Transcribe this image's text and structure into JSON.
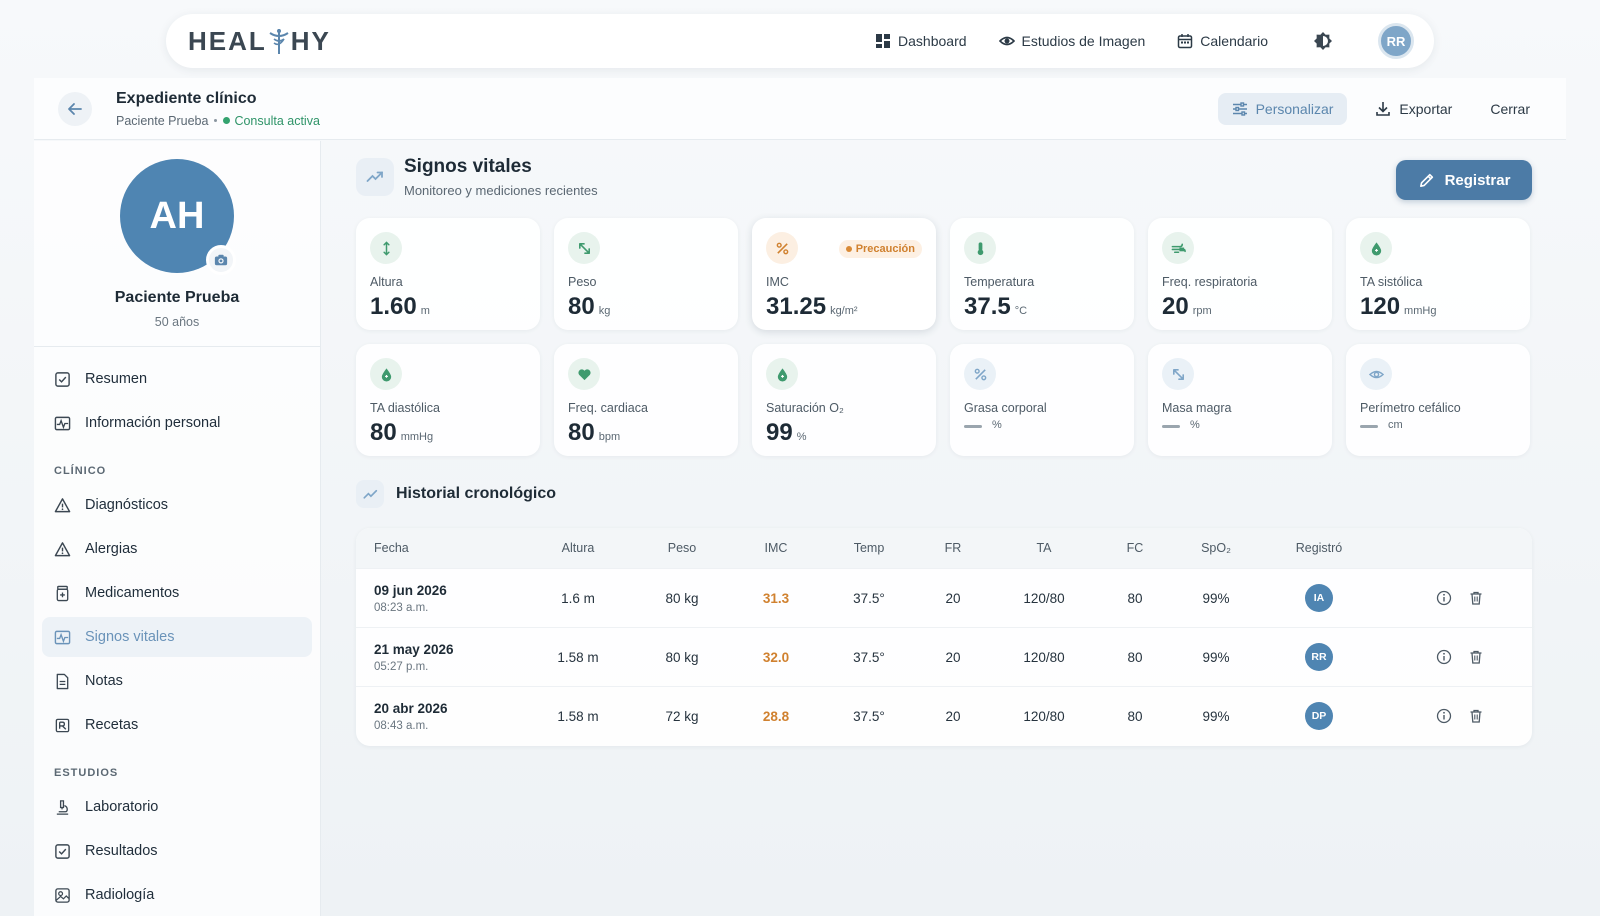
{
  "brand": {
    "left": "HEAL",
    "right": "HY"
  },
  "nav": {
    "items": [
      {
        "label": "Dashboard",
        "icon": "grid-icon"
      },
      {
        "label": "Estudios de Imagen",
        "icon": "eye-icon"
      },
      {
        "label": "Calendario",
        "icon": "calendar-icon"
      }
    ],
    "user_initials": "RR"
  },
  "header": {
    "title": "Expediente clínico",
    "patient": "Paciente Prueba",
    "status": "Consulta activa",
    "actions": {
      "customize": "Personalizar",
      "export": "Exportar",
      "close": "Cerrar"
    }
  },
  "profile": {
    "initials": "AH",
    "name": "Paciente Prueba",
    "age": "50 años"
  },
  "sidebar": {
    "top_items": [
      {
        "label": "Resumen",
        "icon": "checklist-icon"
      },
      {
        "label": "Información personal",
        "icon": "vitals-icon"
      }
    ],
    "clinical_title": "CLÍNICO",
    "clinical_items": [
      {
        "label": "Diagnósticos",
        "icon": "warning-icon"
      },
      {
        "label": "Alergias",
        "icon": "warning-icon"
      },
      {
        "label": "Medicamentos",
        "icon": "pill-bottle-icon"
      },
      {
        "label": "Signos vitales",
        "icon": "vitals-icon"
      },
      {
        "label": "Notas",
        "icon": "document-icon"
      },
      {
        "label": "Recetas",
        "icon": "prescription-icon"
      }
    ],
    "studies_title": "ESTUDIOS",
    "studies_items": [
      {
        "label": "Laboratorio",
        "icon": "microscope-icon"
      },
      {
        "label": "Resultados",
        "icon": "checklist-icon"
      },
      {
        "label": "Radiología",
        "icon": "image-scan-icon"
      }
    ]
  },
  "vitals": {
    "title": "Signos vitales",
    "subtitle": "Monitoreo y mediciones recientes",
    "register_label": "Registrar",
    "cards": [
      {
        "label": "Altura",
        "value": "1.60",
        "unit": "m",
        "icon": "height-icon"
      },
      {
        "label": "Peso",
        "value": "80",
        "unit": "kg",
        "icon": "weight-icon"
      },
      {
        "label": "IMC",
        "value": "31.25",
        "unit": "kg/m²",
        "icon": "percent-icon",
        "badge": "Precaución"
      },
      {
        "label": "Temperatura",
        "value": "37.5",
        "unit": "°C",
        "icon": "thermometer-icon"
      },
      {
        "label": "Freq. respiratoria",
        "value": "20",
        "unit": "rpm",
        "icon": "wind-icon"
      },
      {
        "label": "TA sistólica",
        "value": "120",
        "unit": "mmHg",
        "icon": "drop-icon"
      },
      {
        "label": "TA diastólica",
        "value": "80",
        "unit": "mmHg",
        "icon": "drop-icon"
      },
      {
        "label": "Freq. cardiaca",
        "value": "80",
        "unit": "bpm",
        "icon": "heart-icon"
      },
      {
        "label": "Saturación O₂",
        "value": "99",
        "unit": "%",
        "icon": "drop-icon"
      },
      {
        "label": "Grasa corporal",
        "value": "",
        "unit": "%",
        "icon": "percent-icon"
      },
      {
        "label": "Masa magra",
        "value": "",
        "unit": "%",
        "icon": "weight-icon"
      },
      {
        "label": "Perímetro cefálico",
        "value": "",
        "unit": "cm",
        "icon": "eye-icon"
      }
    ],
    "colors": {
      "green": "#3f9a6e",
      "orange": "#d0812f",
      "blue": "#7fa6c8"
    }
  },
  "history": {
    "title": "Historial cronológico",
    "columns": [
      "Fecha",
      "Altura",
      "Peso",
      "IMC",
      "Temp",
      "FR",
      "TA",
      "FC",
      "SpO₂",
      "Registró"
    ],
    "rows": [
      {
        "date": "09 jun 2026",
        "time": "08:23 a.m.",
        "height": "1.6 m",
        "weight": "80 kg",
        "imc": "31.3",
        "temp": "37.5°",
        "fr": "20",
        "ta": "120/80",
        "fc": "80",
        "spo2": "99%",
        "by": "IA"
      },
      {
        "date": "21 may 2026",
        "time": "05:27 p.m.",
        "height": "1.58 m",
        "weight": "80 kg",
        "imc": "32.0",
        "temp": "37.5°",
        "fr": "20",
        "ta": "120/80",
        "fc": "80",
        "spo2": "99%",
        "by": "RR"
      },
      {
        "date": "20 abr 2026",
        "time": "08:43 a.m.",
        "height": "1.58 m",
        "weight": "72 kg",
        "imc": "28.8",
        "temp": "37.5°",
        "fr": "20",
        "ta": "120/80",
        "fc": "80",
        "spo2": "99%",
        "by": "DP"
      }
    ]
  }
}
